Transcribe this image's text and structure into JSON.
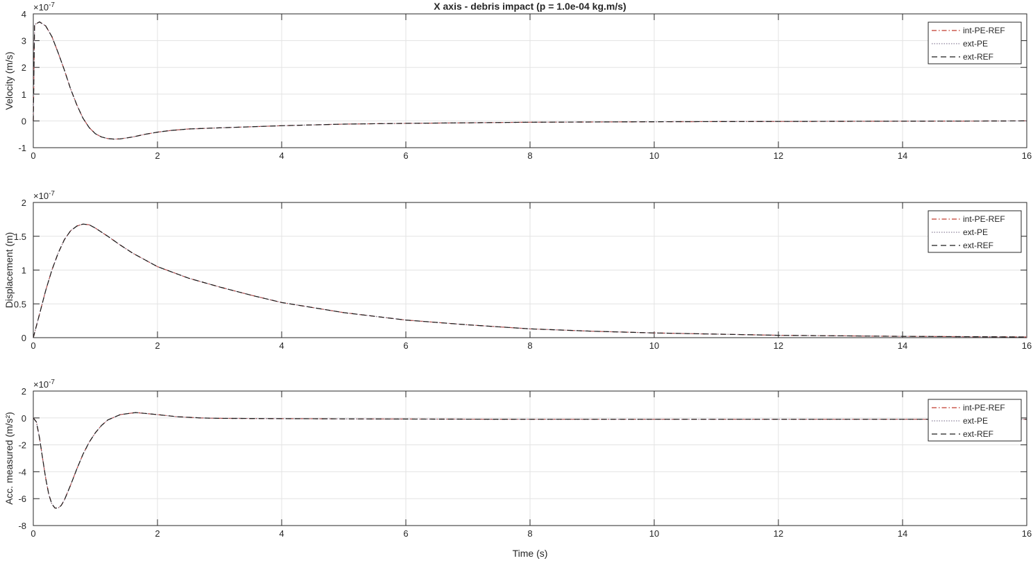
{
  "figure_title": "X axis - debris impact (p = 1.0e-04 kg.m/s)",
  "xlabel": "Time (s)",
  "legend_entries": [
    {
      "name": "int-PE-REF",
      "color": "#c0392b",
      "style": "dash-dot"
    },
    {
      "name": "ext-PE",
      "color": "#8a7f99",
      "style": "dotted"
    },
    {
      "name": "ext-REF",
      "color": "#1a1a1a",
      "style": "dashed"
    }
  ],
  "chart_data": [
    {
      "type": "line",
      "ylabel": "Velocity (m/s)",
      "exponent": "×10",
      "exponent_power": "-7",
      "xlim": [
        0,
        16
      ],
      "ylim": [
        -1,
        4
      ],
      "xticks": [
        0,
        2,
        4,
        6,
        8,
        10,
        12,
        14,
        16
      ],
      "yticks": [
        -1,
        0,
        1,
        2,
        3,
        4
      ],
      "grid": true,
      "legend": "top-right",
      "x": [
        0,
        0.02,
        0.1,
        0.2,
        0.3,
        0.4,
        0.5,
        0.6,
        0.7,
        0.8,
        0.9,
        1.0,
        1.1,
        1.2,
        1.3,
        1.4,
        1.6,
        1.8,
        2.0,
        2.2,
        2.5,
        3,
        4,
        5,
        6,
        7,
        8,
        10,
        12,
        14,
        16
      ],
      "y": [
        0,
        3.6,
        3.7,
        3.55,
        3.15,
        2.55,
        1.9,
        1.2,
        0.6,
        0.1,
        -0.25,
        -0.48,
        -0.6,
        -0.66,
        -0.68,
        -0.67,
        -0.6,
        -0.5,
        -0.42,
        -0.36,
        -0.3,
        -0.26,
        -0.18,
        -0.12,
        -0.09,
        -0.07,
        -0.05,
        -0.03,
        -0.02,
        -0.01,
        0
      ]
    },
    {
      "type": "line",
      "ylabel": "Displacement (m)",
      "exponent": "×10",
      "exponent_power": "-7",
      "xlim": [
        0,
        16
      ],
      "ylim": [
        0,
        2
      ],
      "xticks": [
        0,
        2,
        4,
        6,
        8,
        10,
        12,
        14,
        16
      ],
      "yticks": [
        0,
        0.5,
        1,
        1.5,
        2
      ],
      "grid": true,
      "legend": "top-right",
      "x": [
        0,
        0.1,
        0.2,
        0.3,
        0.4,
        0.5,
        0.6,
        0.7,
        0.8,
        0.9,
        1.0,
        1.2,
        1.4,
        1.6,
        2,
        2.5,
        3,
        3.5,
        4,
        5,
        6,
        7,
        8,
        9,
        10,
        12,
        14,
        16
      ],
      "y": [
        0,
        0.35,
        0.7,
        1.0,
        1.25,
        1.45,
        1.58,
        1.65,
        1.68,
        1.67,
        1.62,
        1.5,
        1.37,
        1.25,
        1.05,
        0.88,
        0.75,
        0.63,
        0.52,
        0.37,
        0.26,
        0.19,
        0.13,
        0.095,
        0.07,
        0.035,
        0.02,
        0.01
      ]
    },
    {
      "type": "line",
      "ylabel": "Acc. measured (m/s²)",
      "exponent": "×10",
      "exponent_power": "-7",
      "xlim": [
        0,
        16
      ],
      "ylim": [
        -8,
        2
      ],
      "xticks": [
        0,
        2,
        4,
        6,
        8,
        10,
        12,
        14,
        16
      ],
      "yticks": [
        -8,
        -6,
        -4,
        -2,
        0,
        2
      ],
      "grid": true,
      "legend": "top-right",
      "x": [
        0,
        0.05,
        0.1,
        0.15,
        0.2,
        0.25,
        0.3,
        0.35,
        0.4,
        0.45,
        0.5,
        0.6,
        0.7,
        0.8,
        0.9,
        1.0,
        1.1,
        1.2,
        1.4,
        1.65,
        2,
        2.3,
        2.7,
        3,
        4,
        6,
        8,
        10,
        12,
        14,
        16
      ],
      "y": [
        0,
        -0.3,
        -1.5,
        -3,
        -4.5,
        -5.7,
        -6.4,
        -6.7,
        -6.7,
        -6.5,
        -6.1,
        -5.0,
        -3.8,
        -2.7,
        -1.8,
        -1.1,
        -0.55,
        -0.15,
        0.25,
        0.4,
        0.25,
        0.1,
        0,
        -0.03,
        -0.05,
        -0.08,
        -0.1,
        -0.1,
        -0.1,
        -0.1,
        -0.1
      ]
    }
  ]
}
